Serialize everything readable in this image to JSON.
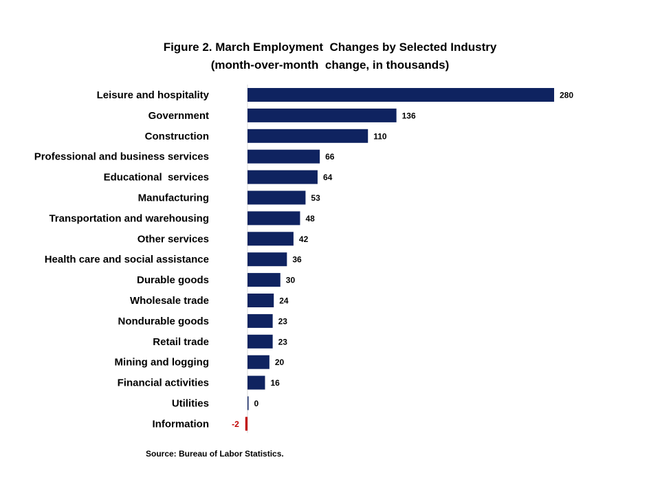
{
  "chart_data": {
    "type": "bar",
    "orientation": "horizontal",
    "title": "Figure 2. March Employment  Changes by Selected Industry",
    "subtitle": "(month-over-month  change, in thousands)",
    "categories": [
      "Leisure and hospitality",
      "Government",
      "Construction",
      "Professional and business services",
      "Educational  services",
      "Manufacturing",
      "Transportation and warehousing",
      "Other services",
      "Health care and social assistance",
      "Durable goods",
      "Wholesale trade",
      "Nondurable goods",
      "Retail trade",
      "Mining and logging",
      "Financial activities",
      "Utilities",
      "Information"
    ],
    "values": [
      280,
      136,
      110,
      66,
      64,
      53,
      48,
      42,
      36,
      30,
      24,
      23,
      23,
      20,
      16,
      0,
      -2
    ],
    "value_labels": [
      "280",
      "136",
      "110",
      "66",
      "64",
      "53",
      "48",
      "42",
      "36",
      "30",
      "24",
      "23",
      "23",
      "20",
      "16",
      "0",
      "-2"
    ],
    "positive_color": "#0f2360",
    "negative_color": "#c00000",
    "grid": false,
    "legend": "none"
  },
  "source": "Source: Bureau of Labor Statistics."
}
